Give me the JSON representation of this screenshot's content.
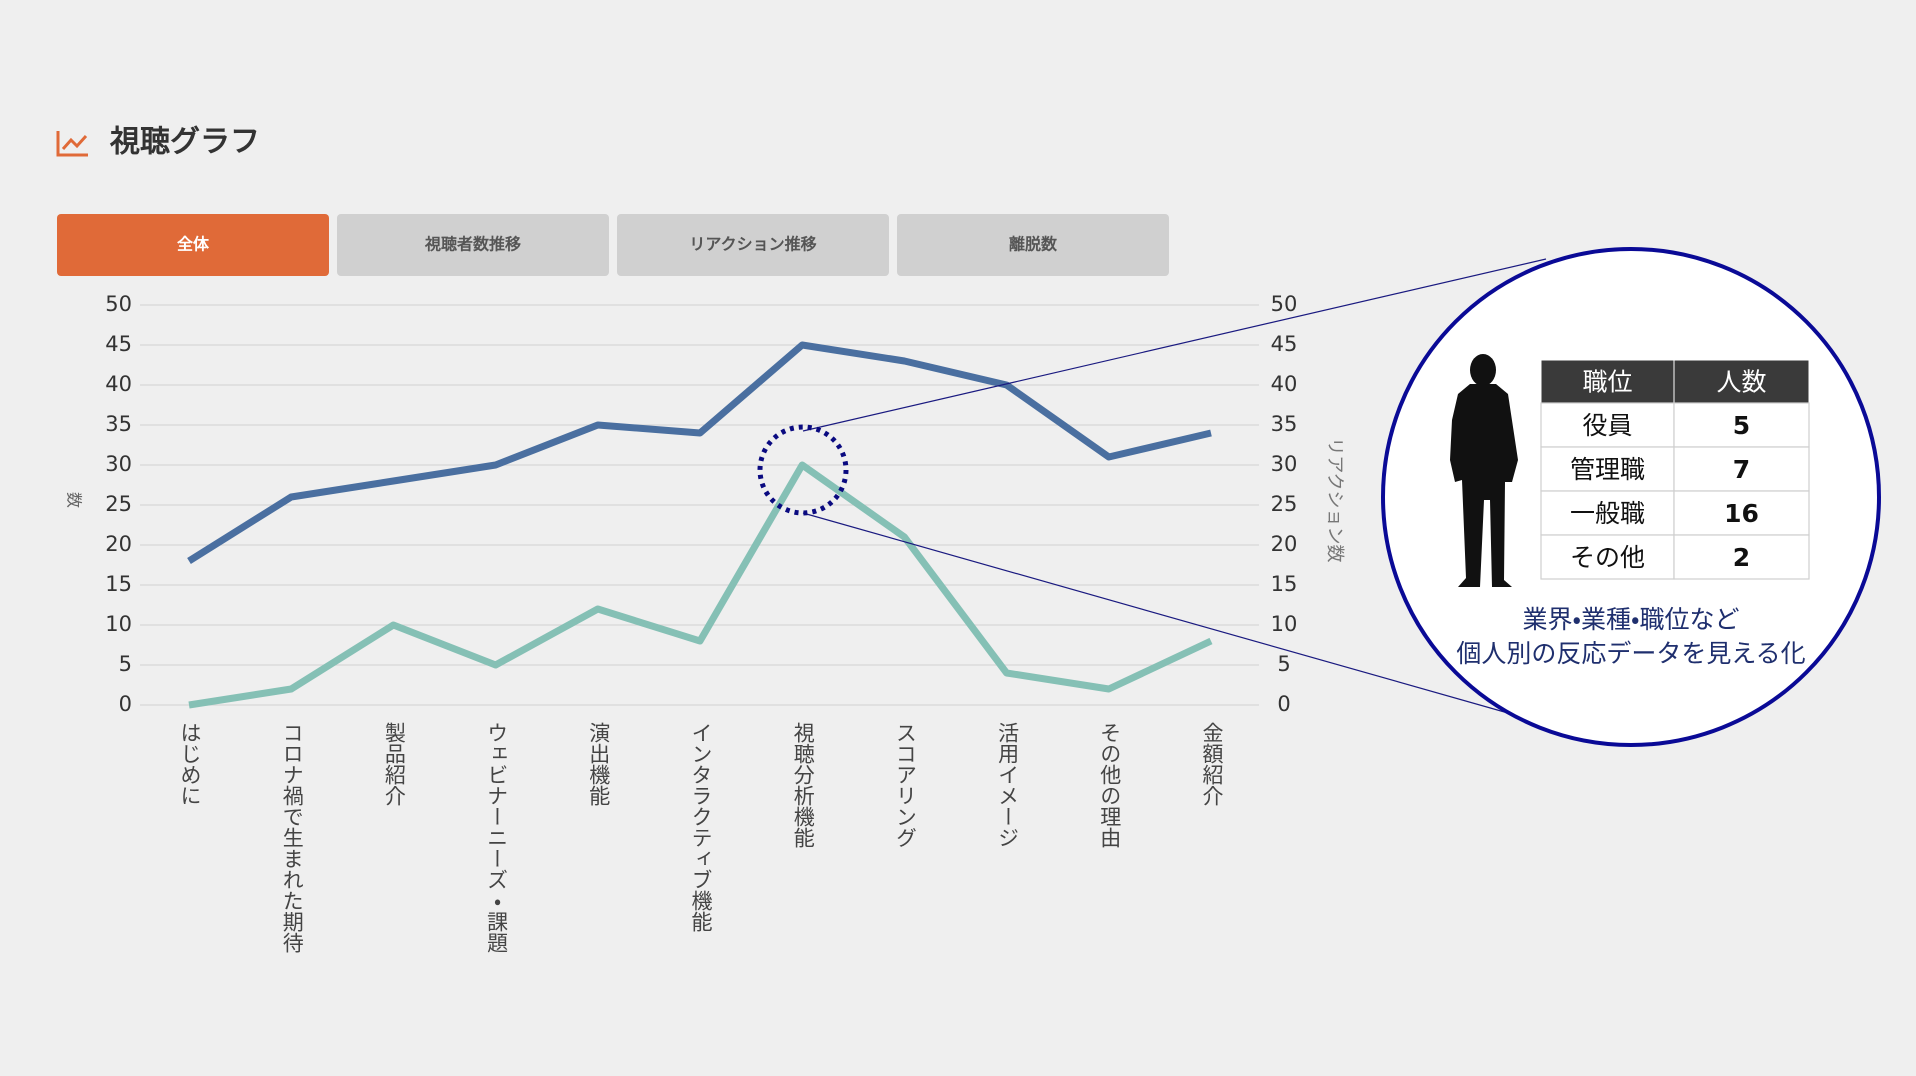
{
  "header": {
    "title": "視聴グラフ"
  },
  "tabs": [
    "全体",
    "視聴者数推移",
    "リアクション推移",
    "離脱数"
  ],
  "chart_data": {
    "type": "line",
    "y_label": "数",
    "y2_label": "リアクション数",
    "categories": [
      "はじめに",
      "コロナ禍で生まれた期待",
      "製品紹介",
      "ウェビナーニーズ・課題",
      "演出機能",
      "インタラクティブ機能",
      "視聴分析機能",
      "スコアリング",
      "活用イメージ",
      "その他の理由",
      "金額紹介"
    ],
    "series": [
      {
        "color": "#4a6fa0",
        "values": [
          18,
          26,
          28,
          30,
          35,
          34,
          45,
          43,
          40,
          31,
          34
        ]
      },
      {
        "color": "#85c0b5",
        "axis": "y2",
        "values": [
          0,
          2,
          10,
          5,
          12,
          8,
          30,
          21,
          4,
          2,
          8
        ]
      }
    ],
    "ylim": [
      0,
      50
    ],
    "yticks": [
      0,
      5,
      10,
      15,
      20,
      25,
      30,
      35,
      40,
      45,
      50
    ],
    "y2lim": [
      0,
      50
    ],
    "y2ticks": [
      0,
      5,
      10,
      15,
      20,
      25,
      30,
      35,
      40,
      45,
      50
    ],
    "grid": true
  },
  "callout": {
    "table": {
      "columns": [
        "職位",
        "人数"
      ],
      "rows": [
        [
          "役員",
          5
        ],
        [
          "管理職",
          7
        ],
        [
          "一般職",
          16
        ],
        [
          "その他",
          2
        ]
      ]
    },
    "caption": [
      "業界・業種・職位など",
      "個人別の反応データを見える化"
    ]
  }
}
